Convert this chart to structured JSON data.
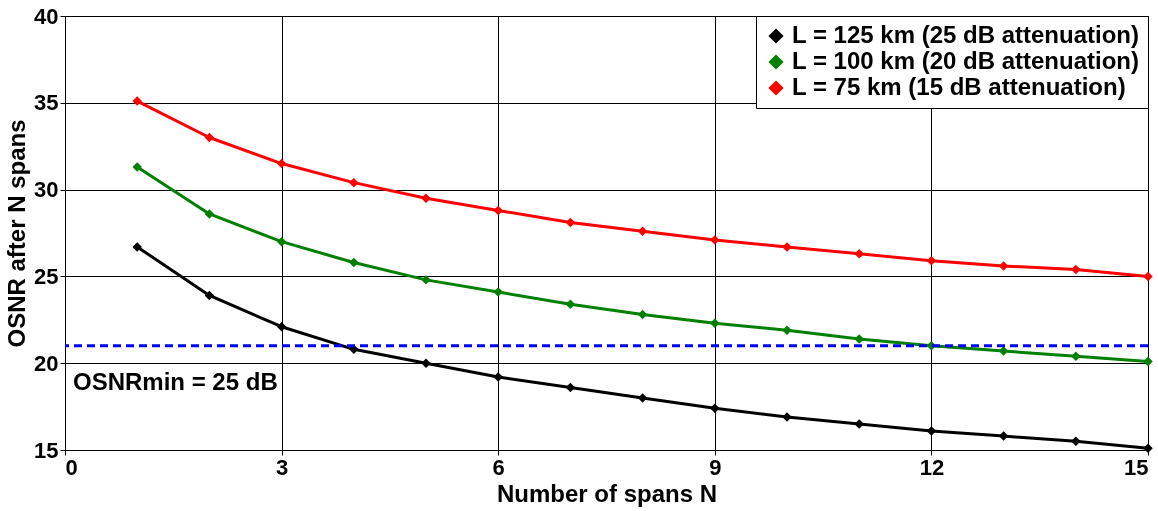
{
  "chart_data": {
    "type": "line",
    "xlabel": "Number of spans N",
    "ylabel": "OSNR after N spans",
    "x": [
      1,
      2,
      3,
      4,
      5,
      6,
      7,
      8,
      9,
      10,
      11,
      12,
      13,
      14,
      15
    ],
    "series": [
      {
        "name": "L = 125 km (25 dB attenuation)",
        "color": "#000000",
        "values": [
          26.7,
          23.9,
          22.1,
          20.8,
          20.0,
          19.2,
          18.6,
          18.0,
          17.4,
          16.9,
          16.5,
          16.1,
          15.8,
          15.5,
          15.1
        ]
      },
      {
        "name": "L = 100 km (20 dB attenuation)",
        "color": "#008000",
        "values": [
          31.3,
          28.6,
          27.0,
          25.8,
          24.8,
          24.1,
          23.4,
          22.8,
          22.3,
          21.9,
          21.4,
          21.0,
          20.7,
          20.4,
          20.1
        ]
      },
      {
        "name": "L = 75 km (15 dB attenuation)",
        "color": "#ff0000",
        "values": [
          35.1,
          33.0,
          31.5,
          30.4,
          29.5,
          28.8,
          28.1,
          27.6,
          27.1,
          26.7,
          26.3,
          25.9,
          25.6,
          25.4,
          25.0
        ]
      }
    ],
    "xlim": [
      0,
      15
    ],
    "xticks": [
      0,
      3,
      6,
      9,
      12,
      15
    ],
    "ylim": [
      15,
      40
    ],
    "yticks": [
      15,
      20,
      25,
      30,
      35,
      40
    ],
    "ref_lines": [
      {
        "axis": "y",
        "value": 21.0,
        "color": "#0000ff",
        "line_style": "dashed"
      }
    ],
    "annotations": [
      "OSNRmin = 25 dB"
    ],
    "grid": true,
    "legend": "top right",
    "marker": "diamond",
    "line_style": "solid"
  }
}
